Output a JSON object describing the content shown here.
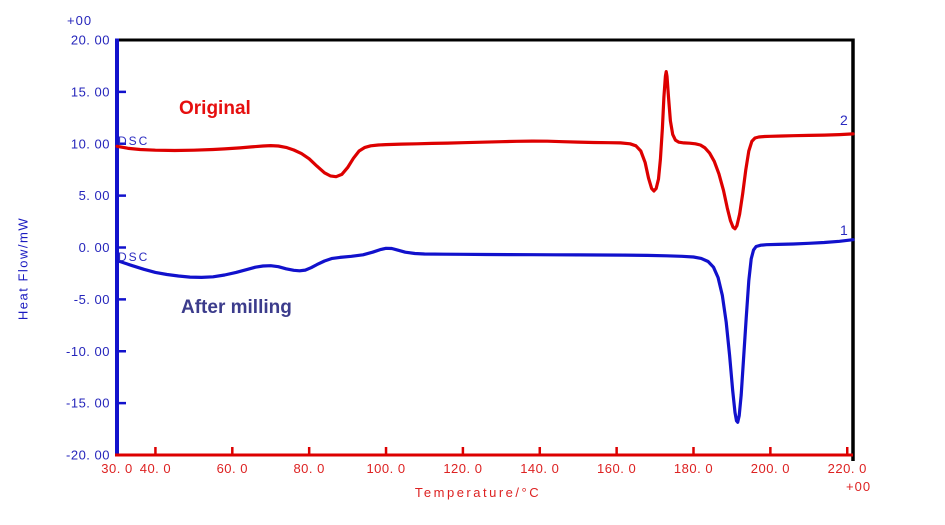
{
  "annotations": {
    "top_offset": "+00",
    "bottom_offset": "+00",
    "dsc_top": "DSC",
    "dsc_bottom": "DSC",
    "original": "Original",
    "after_milling": "After milling",
    "curve2_num": "2",
    "curve1_num": "1"
  },
  "axes": {
    "y_title": "Heat Flow/mW",
    "x_title": "Temperature/°C",
    "x_ticks": [
      {
        "v": 30,
        "label": "30. 0",
        "mark": false
      },
      {
        "v": 40,
        "label": "40. 0",
        "mark": true
      },
      {
        "v": 60,
        "label": "60. 0",
        "mark": true
      },
      {
        "v": 80,
        "label": "80. 0",
        "mark": true
      },
      {
        "v": 100,
        "label": "100. 0",
        "mark": true
      },
      {
        "v": 120,
        "label": "120. 0",
        "mark": true
      },
      {
        "v": 140,
        "label": "140. 0",
        "mark": true
      },
      {
        "v": 160,
        "label": "160. 0",
        "mark": true
      },
      {
        "v": 180,
        "label": "180. 0",
        "mark": true
      },
      {
        "v": 200,
        "label": "200. 0",
        "mark": true
      },
      {
        "v": 220,
        "label": "220. 0",
        "mark": true
      }
    ],
    "y_ticks": [
      {
        "v": 20,
        "label": "20. 00",
        "mark": false
      },
      {
        "v": 15,
        "label": "15. 00",
        "mark": true
      },
      {
        "v": 10,
        "label": "10. 00",
        "mark": true
      },
      {
        "v": 5,
        "label": "5. 00",
        "mark": true
      },
      {
        "v": 0,
        "label": "0. 00",
        "mark": true
      },
      {
        "v": -5,
        "label": "-5. 00",
        "mark": true
      },
      {
        "v": -10,
        "label": "-10. 00",
        "mark": true
      },
      {
        "v": -15,
        "label": "-15. 00",
        "mark": true
      },
      {
        "v": -20,
        "label": "-20. 00",
        "mark": false
      }
    ]
  },
  "colors": {
    "frame": "#000000",
    "x_axis": "#dd0000",
    "y_axis": "#1212cc",
    "x_text": "#dd2222",
    "y_text": "#2525bb",
    "curve_original": "#dd0000",
    "curve_after_milling": "#1111cc",
    "original_text": "#e60f0f",
    "after_milling_text": "#3c3c8c",
    "dsc_text": "#2a2ac0"
  },
  "chart_data": {
    "type": "line",
    "title": "",
    "xlabel": "Temperature/°C",
    "ylabel": "Heat Flow/mW",
    "xlim": [
      30,
      221.5
    ],
    "ylim": [
      -20,
      20
    ],
    "grid": false,
    "legend": "none (curves annotated in-plot: 'Original' = curve 2, 'After milling' = curve 1)",
    "series": [
      {
        "name": "Original",
        "curve_number": "2",
        "color": "#dd0000",
        "features": "baseline ~9.5-10.3 mW; broad endotherm dip to ~6.8 mW near 86 C; small endotherm to ~5.5 mW at ~170 C followed by sharp exotherm peak to ~17 mW at ~173 C; deep melting endotherm to ~1.8 mW at ~191 C; recovers to ~10.8 mW",
        "points": [
          [
            30,
            9.75
          ],
          [
            33,
            9.55
          ],
          [
            36,
            9.45
          ],
          [
            40,
            9.38
          ],
          [
            45,
            9.35
          ],
          [
            50,
            9.38
          ],
          [
            55,
            9.45
          ],
          [
            58,
            9.5
          ],
          [
            62,
            9.6
          ],
          [
            65,
            9.7
          ],
          [
            68,
            9.78
          ],
          [
            70,
            9.82
          ],
          [
            72,
            9.78
          ],
          [
            74,
            9.65
          ],
          [
            76,
            9.4
          ],
          [
            78,
            9.05
          ],
          [
            80,
            8.55
          ],
          [
            82,
            7.85
          ],
          [
            84,
            7.2
          ],
          [
            85.5,
            6.9
          ],
          [
            87,
            6.82
          ],
          [
            88.5,
            7.05
          ],
          [
            90,
            7.7
          ],
          [
            91.5,
            8.6
          ],
          [
            93,
            9.3
          ],
          [
            94.5,
            9.65
          ],
          [
            96,
            9.8
          ],
          [
            98,
            9.88
          ],
          [
            100,
            9.92
          ],
          [
            104,
            9.97
          ],
          [
            108,
            10.0
          ],
          [
            112,
            10.03
          ],
          [
            116,
            10.06
          ],
          [
            120,
            10.1
          ],
          [
            125,
            10.15
          ],
          [
            130,
            10.2
          ],
          [
            134,
            10.24
          ],
          [
            138,
            10.26
          ],
          [
            142,
            10.25
          ],
          [
            146,
            10.2
          ],
          [
            150,
            10.16
          ],
          [
            154,
            10.12
          ],
          [
            158,
            10.1
          ],
          [
            161,
            10.08
          ],
          [
            163.5,
            10.0
          ],
          [
            165,
            9.8
          ],
          [
            166.3,
            9.3
          ],
          [
            167.4,
            8.2
          ],
          [
            168.3,
            6.7
          ],
          [
            169.1,
            5.7
          ],
          [
            169.7,
            5.45
          ],
          [
            170.3,
            5.7
          ],
          [
            170.9,
            6.6
          ],
          [
            171.4,
            8.5
          ],
          [
            171.9,
            11.5
          ],
          [
            172.3,
            14.5
          ],
          [
            172.7,
            16.5
          ],
          [
            172.9,
            16.95
          ],
          [
            173.1,
            16.5
          ],
          [
            173.5,
            14.5
          ],
          [
            174,
            12.2
          ],
          [
            174.6,
            10.9
          ],
          [
            175.3,
            10.35
          ],
          [
            176.2,
            10.15
          ],
          [
            177.5,
            10.08
          ],
          [
            179,
            10.05
          ],
          [
            180.5,
            10.0
          ],
          [
            181.8,
            9.88
          ],
          [
            183,
            9.6
          ],
          [
            184.2,
            9.1
          ],
          [
            185.4,
            8.3
          ],
          [
            186.6,
            7.1
          ],
          [
            187.8,
            5.5
          ],
          [
            188.8,
            3.8
          ],
          [
            189.6,
            2.6
          ],
          [
            190.3,
            1.95
          ],
          [
            190.8,
            1.8
          ],
          [
            191.3,
            2.1
          ],
          [
            192,
            3.2
          ],
          [
            192.8,
            5.2
          ],
          [
            193.6,
            7.5
          ],
          [
            194.4,
            9.3
          ],
          [
            195.2,
            10.25
          ],
          [
            196,
            10.55
          ],
          [
            197,
            10.65
          ],
          [
            198.5,
            10.7
          ],
          [
            200,
            10.72
          ],
          [
            203,
            10.75
          ],
          [
            206,
            10.78
          ],
          [
            210,
            10.8
          ],
          [
            214,
            10.83
          ],
          [
            218,
            10.88
          ],
          [
            221.5,
            10.95
          ]
        ]
      },
      {
        "name": "After milling",
        "curve_number": "1",
        "color": "#1111cc",
        "features": "starts ~-1.2 mW; broad dip to ~-2.9 mW near 50 C; wobble near 70-78 C; small bump to ~0 mW at 100 C; flat ~-0.7 mW; single deep melting endotherm to ~-16.9 mW at ~191.5 C; recovers to ~0.3-0.75 mW",
        "points": [
          [
            30,
            -1.25
          ],
          [
            32,
            -1.5
          ],
          [
            34,
            -1.75
          ],
          [
            37,
            -2.1
          ],
          [
            40,
            -2.4
          ],
          [
            43,
            -2.6
          ],
          [
            46,
            -2.75
          ],
          [
            49,
            -2.85
          ],
          [
            52,
            -2.88
          ],
          [
            55,
            -2.82
          ],
          [
            58,
            -2.65
          ],
          [
            61,
            -2.4
          ],
          [
            64,
            -2.1
          ],
          [
            66,
            -1.9
          ],
          [
            68,
            -1.78
          ],
          [
            70,
            -1.75
          ],
          [
            72,
            -1.85
          ],
          [
            74,
            -2.05
          ],
          [
            76,
            -2.2
          ],
          [
            77.5,
            -2.25
          ],
          [
            79,
            -2.18
          ],
          [
            80.5,
            -1.95
          ],
          [
            82,
            -1.65
          ],
          [
            84,
            -1.3
          ],
          [
            86,
            -1.05
          ],
          [
            88,
            -0.95
          ],
          [
            91,
            -0.85
          ],
          [
            94,
            -0.7
          ],
          [
            96.5,
            -0.45
          ],
          [
            98.5,
            -0.2
          ],
          [
            100,
            -0.08
          ],
          [
            101.5,
            -0.1
          ],
          [
            103,
            -0.25
          ],
          [
            105,
            -0.45
          ],
          [
            107.5,
            -0.58
          ],
          [
            110,
            -0.63
          ],
          [
            115,
            -0.65
          ],
          [
            120,
            -0.66
          ],
          [
            126,
            -0.67
          ],
          [
            132,
            -0.68
          ],
          [
            138,
            -0.69
          ],
          [
            144,
            -0.7
          ],
          [
            150,
            -0.71
          ],
          [
            156,
            -0.72
          ],
          [
            162,
            -0.73
          ],
          [
            168,
            -0.76
          ],
          [
            173,
            -0.8
          ],
          [
            177,
            -0.85
          ],
          [
            180,
            -0.92
          ],
          [
            182,
            -1.05
          ],
          [
            183.8,
            -1.35
          ],
          [
            185.2,
            -1.9
          ],
          [
            186.4,
            -2.9
          ],
          [
            187.5,
            -4.6
          ],
          [
            188.5,
            -7.2
          ],
          [
            189.4,
            -10.4
          ],
          [
            190.2,
            -13.8
          ],
          [
            190.8,
            -15.9
          ],
          [
            191.2,
            -16.7
          ],
          [
            191.5,
            -16.85
          ],
          [
            191.9,
            -16.2
          ],
          [
            192.4,
            -14.2
          ],
          [
            193,
            -10.8
          ],
          [
            193.7,
            -6.8
          ],
          [
            194.4,
            -3.2
          ],
          [
            195,
            -1.1
          ],
          [
            195.6,
            -0.25
          ],
          [
            196.3,
            0.1
          ],
          [
            197.5,
            0.22
          ],
          [
            199,
            0.27
          ],
          [
            202,
            0.3
          ],
          [
            206,
            0.34
          ],
          [
            210,
            0.4
          ],
          [
            214,
            0.48
          ],
          [
            218,
            0.6
          ],
          [
            221.5,
            0.75
          ]
        ]
      }
    ]
  }
}
